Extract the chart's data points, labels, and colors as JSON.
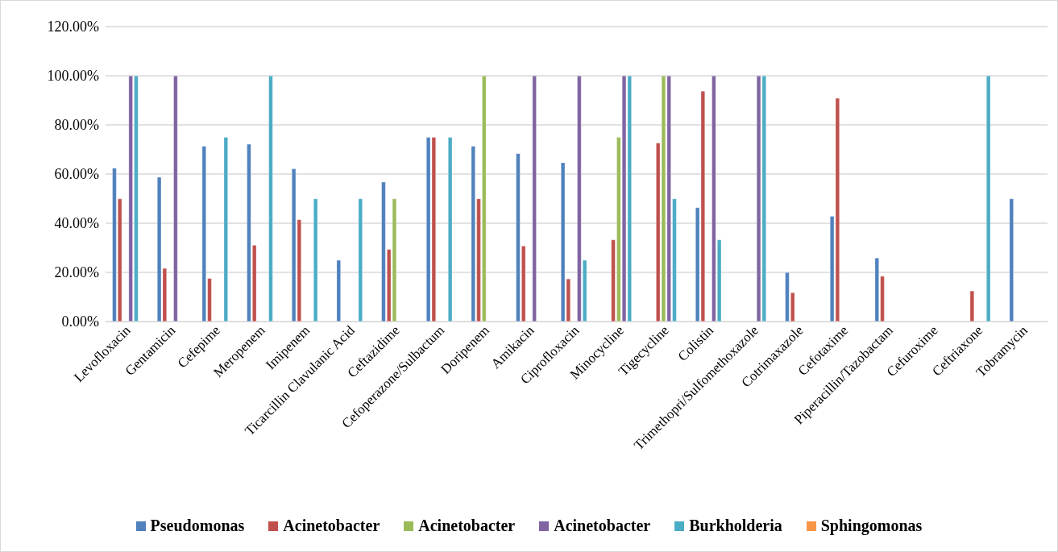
{
  "chart_data": {
    "type": "bar",
    "categories": [
      "Levofloxacin",
      "Gentamicin",
      "Cefepime",
      "Meropenem",
      "Imipenem",
      "Ticarcillin Clavulanic Acid",
      "Ceftazidime",
      "Cefoperazone/Sulbactum",
      "Doripenem",
      "Amikacin",
      "Ciprofloxacin",
      "Minocycline",
      "Tigecycline",
      "Colistin",
      "Trimethopri/Sulfomethoxazole",
      "Cotrimaxazole",
      "Cefotaxime",
      "Piperacillin/Tazobactam",
      "Cefuroxime",
      "Ceftriaxone",
      "Tobramycin"
    ],
    "series": [
      {
        "name": "Pseudomonas",
        "color": "#4f81bd",
        "values": [
          62.5,
          58.8,
          71.4,
          72.2,
          62.2,
          25,
          56.8,
          75,
          71.4,
          68.4,
          64.7,
          null,
          null,
          46.4,
          null,
          20,
          42.9,
          25.9,
          null,
          null,
          50
        ]
      },
      {
        "name": "Acinetobacter",
        "color": "#c0504d",
        "values": [
          50,
          21.7,
          17.6,
          31.1,
          41.5,
          null,
          29.4,
          75,
          50,
          30.8,
          17.4,
          33.3,
          72.7,
          93.8,
          null,
          11.8,
          90.9,
          18.5,
          null,
          12.5,
          null
        ]
      },
      {
        "name": "Acinetobacter",
        "color": "#9bbb59",
        "values": [
          null,
          null,
          null,
          null,
          null,
          null,
          50,
          null,
          100,
          null,
          null,
          75,
          100,
          null,
          null,
          null,
          null,
          null,
          null,
          null,
          null
        ]
      },
      {
        "name": "Acinetobacter",
        "color": "#8064a2",
        "values": [
          100,
          100,
          null,
          null,
          null,
          null,
          null,
          null,
          null,
          100,
          100,
          100,
          100,
          100,
          100,
          null,
          null,
          null,
          null,
          null,
          null
        ]
      },
      {
        "name": "Burkholderia",
        "color": "#4bacc6",
        "values": [
          100,
          null,
          75,
          100,
          50,
          50,
          null,
          75,
          null,
          null,
          25,
          100,
          50,
          33.3,
          100,
          null,
          null,
          null,
          null,
          100,
          null
        ]
      },
      {
        "name": "Sphingomonas",
        "color": "#f79646",
        "values": [
          null,
          null,
          null,
          null,
          null,
          null,
          null,
          null,
          null,
          null,
          null,
          null,
          null,
          null,
          null,
          null,
          null,
          null,
          null,
          null,
          null
        ]
      }
    ],
    "ylim": [
      0,
      120
    ],
    "yticks": [
      {
        "value": 0,
        "label": "0.00%"
      },
      {
        "value": 20,
        "label": "20.00%"
      },
      {
        "value": 40,
        "label": "40.00%"
      },
      {
        "value": 60,
        "label": "60.00%"
      },
      {
        "value": 80,
        "label": "80.00%"
      },
      {
        "value": 100,
        "label": "100.00%"
      },
      {
        "value": 120,
        "label": "120.00%"
      }
    ],
    "grid": "y",
    "legend": "bottom"
  }
}
